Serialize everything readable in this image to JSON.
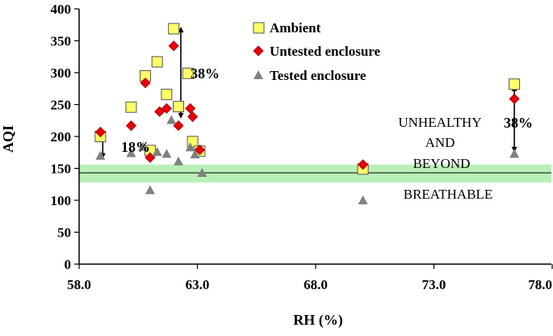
{
  "chart_data": {
    "type": "scatter",
    "xlabel": "RH (%)",
    "ylabel": "AQI",
    "xlim": [
      58,
      78
    ],
    "ylim": [
      0,
      400
    ],
    "x_ticks": [
      "58.0",
      "63.0",
      "68.0",
      "73.0",
      "78.0"
    ],
    "y_ticks": [
      "0",
      "50",
      "100",
      "150",
      "200",
      "250",
      "300",
      "350",
      "400"
    ],
    "grid": false,
    "legend_position": "top-center",
    "threshold_line": 143,
    "threshold_band": [
      128,
      156
    ],
    "zone_labels": {
      "upper": [
        "UNHEALTHY",
        "AND",
        "BEYOND"
      ],
      "lower": "BREATHABLE"
    },
    "annotations": [
      {
        "text": "18%",
        "x": 59.1,
        "y": 183
      },
      {
        "text": "38%",
        "x": 62.8,
        "y": 298
      },
      {
        "text": "38%",
        "x": 76.5,
        "y": 216
      }
    ],
    "arrows": [
      {
        "x": 59.0,
        "y_from": 204,
        "y_to": 165
      },
      {
        "x": 62.3,
        "y_from": 372,
        "y_to": 228
      },
      {
        "x": 76.4,
        "y_from": 280,
        "y_to": 175
      }
    ],
    "series": [
      {
        "name": "Ambient",
        "marker": "square",
        "color": "#ffff66",
        "edge": "#555555",
        "points": [
          [
            58.9,
            200
          ],
          [
            60.2,
            246
          ],
          [
            60.8,
            295
          ],
          [
            61.3,
            317
          ],
          [
            61.7,
            266
          ],
          [
            62.0,
            369
          ],
          [
            62.2,
            247
          ],
          [
            62.6,
            299
          ],
          [
            62.8,
            192
          ],
          [
            63.1,
            177
          ],
          [
            61.0,
            178
          ],
          [
            70.0,
            149
          ],
          [
            76.4,
            282
          ]
        ]
      },
      {
        "name": "Untested enclosure",
        "marker": "diamond",
        "color": "#e8000b",
        "edge": "#990000",
        "points": [
          [
            58.9,
            207
          ],
          [
            60.2,
            217
          ],
          [
            60.8,
            284
          ],
          [
            61.4,
            239
          ],
          [
            61.7,
            244
          ],
          [
            62.0,
            342
          ],
          [
            62.2,
            217
          ],
          [
            62.7,
            244
          ],
          [
            62.8,
            231
          ],
          [
            63.1,
            179
          ],
          [
            61.0,
            167
          ],
          [
            70.0,
            156
          ],
          [
            76.4,
            259
          ]
        ]
      },
      {
        "name": "Tested enclosure",
        "marker": "triangle",
        "color": "#808080",
        "edge": "#808080",
        "points": [
          [
            58.9,
            170
          ],
          [
            60.2,
            174
          ],
          [
            60.7,
            184
          ],
          [
            61.0,
            116
          ],
          [
            61.3,
            176
          ],
          [
            61.7,
            173
          ],
          [
            61.9,
            226
          ],
          [
            62.2,
            161
          ],
          [
            62.7,
            183
          ],
          [
            62.9,
            172
          ],
          [
            63.2,
            143
          ],
          [
            70.0,
            100
          ],
          [
            76.4,
            173
          ]
        ]
      }
    ]
  }
}
